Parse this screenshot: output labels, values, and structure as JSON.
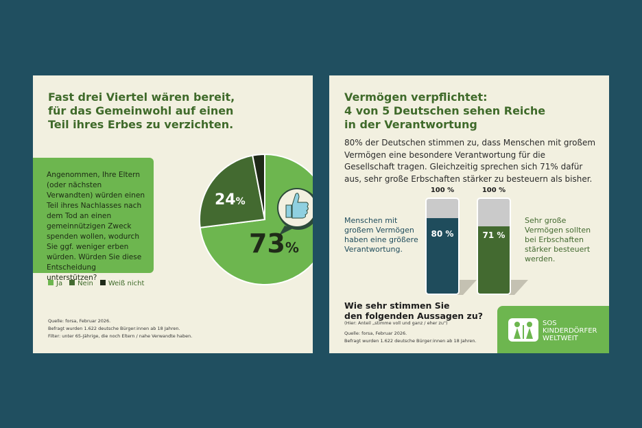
{
  "left": {
    "title": "Fast drei Viertel wären bereit,\nfür das Gemeinwohl auf einen\nTeil ihres Erbes zu verzichten.",
    "question": "Angenommen, Ihre Eltern (oder nächsten Verwandten) würden einen Teil ihres Nachlasses nach dem Tod an einen gemeinnützigen Zweck spenden wollen, wodurch Sie ggf. weniger erben würden. Würden Sie diese Entscheidung unterstützen?",
    "source": "Quelle: forsa, Februar 2026.\nBefragt wurden 1.622 deutsche Bürger:innen ab 18 Jahren.\nFilter: unter 65-Jährige, die noch Eltern / nahe Verwandte haben."
  },
  "chart_data": [
    {
      "type": "pie",
      "categories": [
        "Ja",
        "Nein",
        "Weiß nicht"
      ],
      "values": [
        73,
        24,
        3
      ],
      "labels": [
        "73",
        "24",
        ""
      ],
      "unit": "%",
      "colors": [
        "#6db64f",
        "#436a30",
        "#1f2a18"
      ],
      "legend": "bottom-left"
    },
    {
      "type": "bar",
      "categories": [
        "Menschen mit großem Vermögen haben eine größere Verantwortung.",
        "Sehr große Vermögen sollten bei Erbschaften stärker besteuert werden."
      ],
      "values": [
        80,
        71
      ],
      "labels": [
        "80 %",
        "71 %"
      ],
      "total_label": "100 %",
      "colors": [
        "#1f4c5c",
        "#436a30"
      ],
      "ylim": [
        0,
        100
      ]
    }
  ],
  "right": {
    "title": "Vermögen verpflichtet:\n4 von 5 Deutschen sehen Reiche\nin der Verantwortung",
    "body": "80% der Deutschen stimmen zu, dass Menschen mit großem Vermögen eine besondere Verantwortung für die Gesellschaft tragen. Gleichzeitig sprechen sich 71% dafür aus, sehr große Erbschaften stärker zu besteuern als bisher.",
    "label1": "Menschen mit\ngroßem Vermögen\nhaben eine größere\nVerantwortung.",
    "label2": "Sehr große\nVermögen sollten\nbei Erbschaften\nstärker besteuert\nwerden.",
    "question": "Wie sehr stimmen Sie\nden folgenden Aussagen zu?",
    "note": "(Hier: Anteil „stimme voll und ganz / eher zu\")",
    "source": "Quelle: forsa, Februar 2026.\nBefragt wurden 1.622 deutsche Bürger:innen ab 18 Jahren.",
    "logo_text": "SOS KINDERDÖRFER WELTWEIT"
  }
}
